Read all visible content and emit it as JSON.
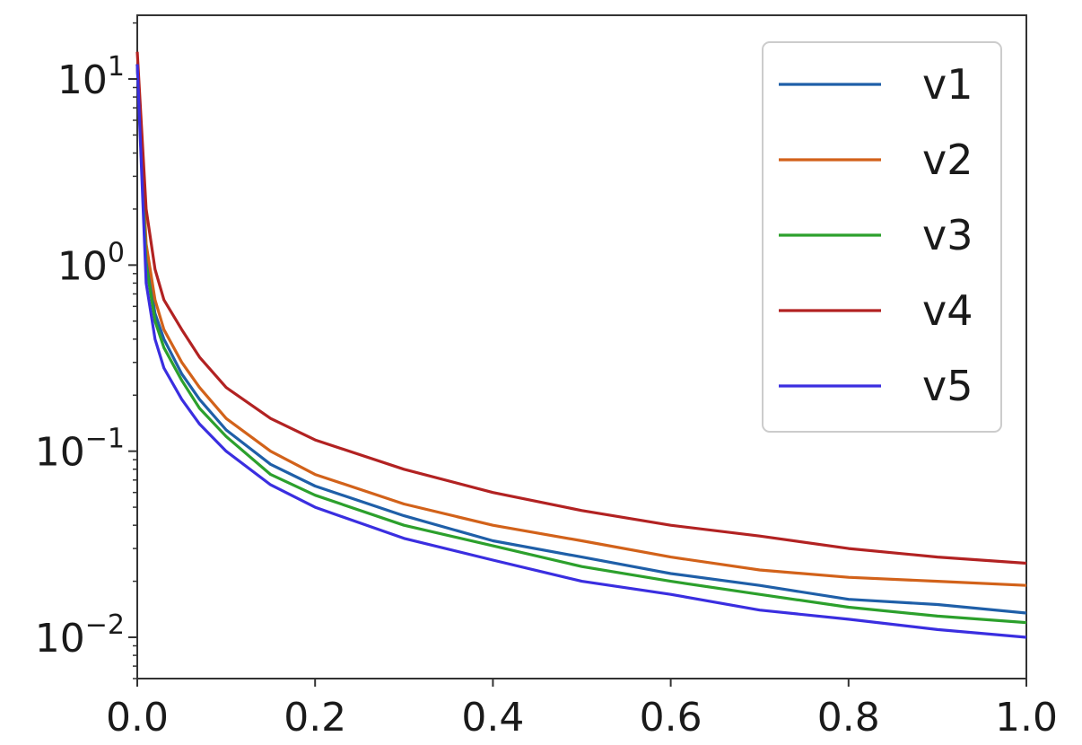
{
  "chart_data": {
    "type": "line",
    "title": "",
    "xlabel": "",
    "ylabel": "",
    "xlim": [
      0.0,
      1.0
    ],
    "ylim": [
      0.006,
      22
    ],
    "yscale": "log",
    "grid": false,
    "legend_placement": "top-right",
    "xticks": [
      {
        "value": 0.0,
        "label": "0.0"
      },
      {
        "value": 0.2,
        "label": "0.2"
      },
      {
        "value": 0.4,
        "label": "0.4"
      },
      {
        "value": 0.6,
        "label": "0.6"
      },
      {
        "value": 0.8,
        "label": "0.8"
      },
      {
        "value": 1.0,
        "label": "1.0"
      }
    ],
    "yticks": [
      {
        "value": 10,
        "base": "10",
        "exp": "1"
      },
      {
        "value": 1,
        "base": "10",
        "exp": "0"
      },
      {
        "value": 0.1,
        "base": "10",
        "exp": "−1"
      },
      {
        "value": 0.01,
        "base": "10",
        "exp": "−2"
      }
    ],
    "x": [
      0.0,
      0.01,
      0.02,
      0.03,
      0.05,
      0.07,
      0.1,
      0.15,
      0.2,
      0.3,
      0.4,
      0.5,
      0.6,
      0.7,
      0.8,
      0.9,
      1.0
    ],
    "series": [
      {
        "name": "v1",
        "color": "#1f5fa8",
        "values": [
          12,
          1.1,
          0.55,
          0.4,
          0.26,
          0.19,
          0.13,
          0.085,
          0.065,
          0.045,
          0.033,
          0.027,
          0.022,
          0.019,
          0.016,
          0.015,
          0.0135
        ]
      },
      {
        "name": "v2",
        "color": "#d2621a",
        "values": [
          12,
          1.3,
          0.65,
          0.45,
          0.3,
          0.22,
          0.15,
          0.1,
          0.075,
          0.052,
          0.04,
          0.033,
          0.027,
          0.023,
          0.021,
          0.02,
          0.019
        ]
      },
      {
        "name": "v3",
        "color": "#2ca02c",
        "values": [
          12,
          1.0,
          0.5,
          0.36,
          0.24,
          0.17,
          0.12,
          0.075,
          0.058,
          0.04,
          0.031,
          0.024,
          0.02,
          0.017,
          0.0145,
          0.013,
          0.012
        ]
      },
      {
        "name": "v4",
        "color": "#b22222",
        "values": [
          14,
          2.0,
          0.95,
          0.65,
          0.45,
          0.32,
          0.22,
          0.15,
          0.115,
          0.08,
          0.06,
          0.048,
          0.04,
          0.035,
          0.03,
          0.027,
          0.025
        ]
      },
      {
        "name": "v5",
        "color": "#3a2ee0",
        "values": [
          12,
          0.8,
          0.4,
          0.28,
          0.19,
          0.14,
          0.1,
          0.066,
          0.05,
          0.034,
          0.026,
          0.02,
          0.017,
          0.014,
          0.0125,
          0.011,
          0.01
        ]
      }
    ]
  }
}
